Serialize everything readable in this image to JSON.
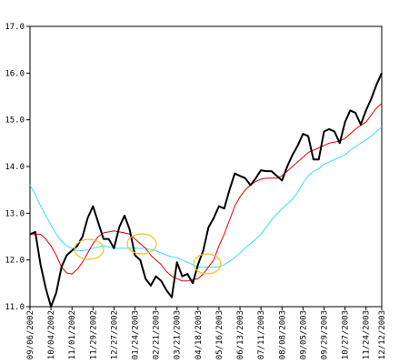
{
  "chart_data": {
    "type": "line",
    "categories": [
      "09/06/2002",
      null,
      null,
      null,
      "10/04/2002",
      null,
      null,
      null,
      "11/01/2002",
      null,
      null,
      null,
      "11/29/2002",
      null,
      null,
      null,
      "12/27/2002",
      null,
      null,
      null,
      "01/24/2003",
      null,
      null,
      null,
      "02/21/2003",
      null,
      null,
      null,
      "03/21/2003",
      null,
      null,
      null,
      "04/18/2003",
      null,
      null,
      null,
      "05/16/2003",
      null,
      null,
      null,
      "06/13/2003",
      null,
      null,
      null,
      "07/11/2003",
      null,
      null,
      null,
      "08/08/2003",
      null,
      null,
      null,
      "09/05/2003",
      null,
      null,
      null,
      "09/29/2003",
      null,
      null,
      null,
      "10/27/2003",
      null,
      null,
      null,
      "11/24/2003",
      null,
      null,
      "12/12/2003"
    ],
    "series": [
      {
        "color": "#000000",
        "width": 2,
        "values": [
          12.55,
          12.6,
          11.9,
          11.4,
          11.0,
          11.3,
          11.85,
          12.1,
          12.2,
          12.3,
          12.5,
          12.9,
          13.15,
          12.8,
          12.45,
          12.45,
          12.25,
          12.7,
          12.95,
          12.65,
          12.1,
          12.0,
          11.6,
          11.45,
          11.65,
          11.55,
          11.35,
          11.2,
          11.95,
          11.65,
          11.7,
          11.5,
          11.9,
          12.2,
          12.7,
          12.9,
          13.15,
          13.1,
          13.5,
          13.85,
          13.8,
          13.75,
          13.6,
          13.75,
          13.92,
          13.9,
          13.9,
          13.8,
          13.7,
          14.0,
          14.25,
          14.45,
          14.7,
          14.65,
          14.15,
          14.15,
          14.75,
          14.8,
          14.75,
          14.5,
          14.95,
          15.2,
          15.15,
          14.9,
          15.2,
          15.45,
          15.75,
          16.0
        ]
      },
      {
        "color": "#e00000",
        "width": 1,
        "values": [
          12.55,
          12.55,
          12.55,
          12.45,
          12.3,
          12.1,
          11.85,
          11.72,
          11.7,
          11.8,
          11.95,
          12.15,
          12.35,
          12.5,
          12.58,
          12.6,
          12.62,
          12.6,
          12.58,
          12.55,
          12.45,
          12.35,
          12.25,
          12.1,
          12.0,
          11.9,
          11.75,
          11.65,
          11.6,
          11.55,
          11.55,
          11.58,
          11.6,
          11.7,
          11.85,
          12.0,
          12.3,
          12.55,
          12.85,
          13.15,
          13.35,
          13.5,
          13.6,
          13.68,
          13.73,
          13.75,
          13.75,
          13.75,
          13.8,
          13.9,
          14.0,
          14.1,
          14.2,
          14.3,
          14.35,
          14.4,
          14.45,
          14.5,
          14.52,
          14.55,
          14.6,
          14.7,
          14.8,
          14.88,
          14.95,
          15.1,
          15.25,
          15.35
        ]
      },
      {
        "color": "#33e0f0",
        "width": 1,
        "values": [
          13.6,
          13.4,
          13.15,
          12.95,
          12.75,
          12.55,
          12.4,
          12.3,
          12.25,
          12.2,
          12.2,
          12.22,
          12.25,
          12.28,
          12.3,
          12.28,
          12.25,
          12.25,
          12.25,
          12.25,
          12.25,
          12.25,
          12.25,
          12.22,
          12.2,
          12.15,
          12.1,
          12.07,
          12.05,
          12.0,
          11.95,
          11.9,
          11.85,
          11.85,
          11.85,
          11.85,
          11.85,
          11.9,
          11.97,
          12.05,
          12.15,
          12.25,
          12.35,
          12.45,
          12.55,
          12.7,
          12.85,
          12.98,
          13.1,
          13.2,
          13.3,
          13.45,
          13.65,
          13.8,
          13.9,
          13.95,
          14.05,
          14.1,
          14.15,
          14.2,
          14.25,
          14.35,
          14.42,
          14.5,
          14.57,
          14.65,
          14.75,
          14.85
        ]
      }
    ],
    "ylim": [
      11,
      17
    ],
    "yticks": [
      {
        "value": 11,
        "label": "11.0"
      },
      {
        "value": 12,
        "label": "12.0"
      },
      {
        "value": 13,
        "label": "13.0"
      },
      {
        "value": 14,
        "label": "14.0"
      },
      {
        "value": 15,
        "label": "15.0"
      },
      {
        "value": 16,
        "label": "16.0"
      },
      {
        "value": 17,
        "label": "17.0"
      }
    ]
  }
}
